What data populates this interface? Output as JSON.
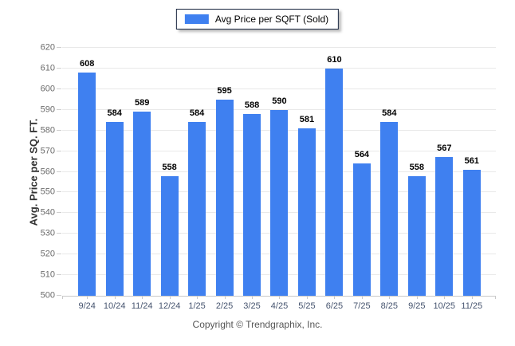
{
  "legend": {
    "label": "Avg Price per SQFT (Sold)",
    "swatch_color": "#3f80f0"
  },
  "footer": {
    "text": "Copyright © Trendgraphix, Inc."
  },
  "chart_data": {
    "type": "bar",
    "categories": [
      "9/24",
      "10/24",
      "11/24",
      "12/24",
      "1/25",
      "2/25",
      "3/25",
      "4/25",
      "5/25",
      "6/25",
      "7/25",
      "8/25",
      "9/25",
      "10/25",
      "11/25"
    ],
    "values": [
      608,
      584,
      589,
      558,
      584,
      595,
      588,
      590,
      581,
      610,
      564,
      584,
      558,
      567,
      561
    ],
    "series_name": "Avg Price per SQFT (Sold)",
    "xlabel": "",
    "ylabel": "Avg. Price per SQ. FT.",
    "ylim": [
      500,
      620
    ],
    "ytick_step": 10,
    "grid": true,
    "legend_position": "top-center",
    "bar_color": "#3f80f0",
    "value_labels": true
  }
}
